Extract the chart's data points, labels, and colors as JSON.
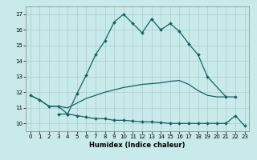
{
  "line1_x": [
    0,
    1,
    2,
    3,
    4,
    5,
    6,
    7,
    8,
    9,
    10,
    11,
    12,
    13,
    14,
    15,
    16,
    17,
    18,
    19,
    21,
    22
  ],
  "line1_y": [
    11.8,
    11.5,
    11.1,
    11.1,
    10.6,
    11.9,
    13.1,
    14.4,
    15.3,
    16.5,
    17.0,
    16.4,
    15.8,
    16.7,
    16.0,
    16.4,
    15.9,
    15.1,
    14.4,
    13.0,
    11.7,
    11.7
  ],
  "line2_x": [
    0,
    1,
    2,
    3,
    4,
    5,
    6,
    7,
    8,
    9,
    10,
    11,
    12,
    13,
    14,
    15,
    16,
    17,
    18,
    19,
    20,
    21
  ],
  "line2_y": [
    11.8,
    11.5,
    11.1,
    11.1,
    11.0,
    11.3,
    11.6,
    11.8,
    12.0,
    12.15,
    12.3,
    12.4,
    12.5,
    12.55,
    12.6,
    12.7,
    12.75,
    12.5,
    12.1,
    11.8,
    11.7,
    11.7
  ],
  "line3_x": [
    3,
    4,
    5,
    6,
    7,
    8,
    9,
    10,
    11,
    12,
    13,
    14,
    15,
    16,
    17,
    18,
    19,
    20,
    21,
    22,
    23
  ],
  "line3_y": [
    10.6,
    10.6,
    10.5,
    10.4,
    10.3,
    10.3,
    10.2,
    10.2,
    10.15,
    10.1,
    10.1,
    10.05,
    10.0,
    10.0,
    10.0,
    10.0,
    10.0,
    10.0,
    10.0,
    10.5,
    9.85
  ],
  "bg_color": "#c8eaea",
  "grid_color": "#a8cccc",
  "line_color": "#1a6060",
  "xlabel": "Humidex (Indice chaleur)",
  "xlim": [
    -0.5,
    23.5
  ],
  "ylim": [
    9.5,
    17.5
  ],
  "yticks": [
    10,
    11,
    12,
    13,
    14,
    15,
    16,
    17
  ],
  "xticks": [
    0,
    1,
    2,
    3,
    4,
    5,
    6,
    7,
    8,
    9,
    10,
    11,
    12,
    13,
    14,
    15,
    16,
    17,
    18,
    19,
    20,
    21,
    22,
    23
  ]
}
